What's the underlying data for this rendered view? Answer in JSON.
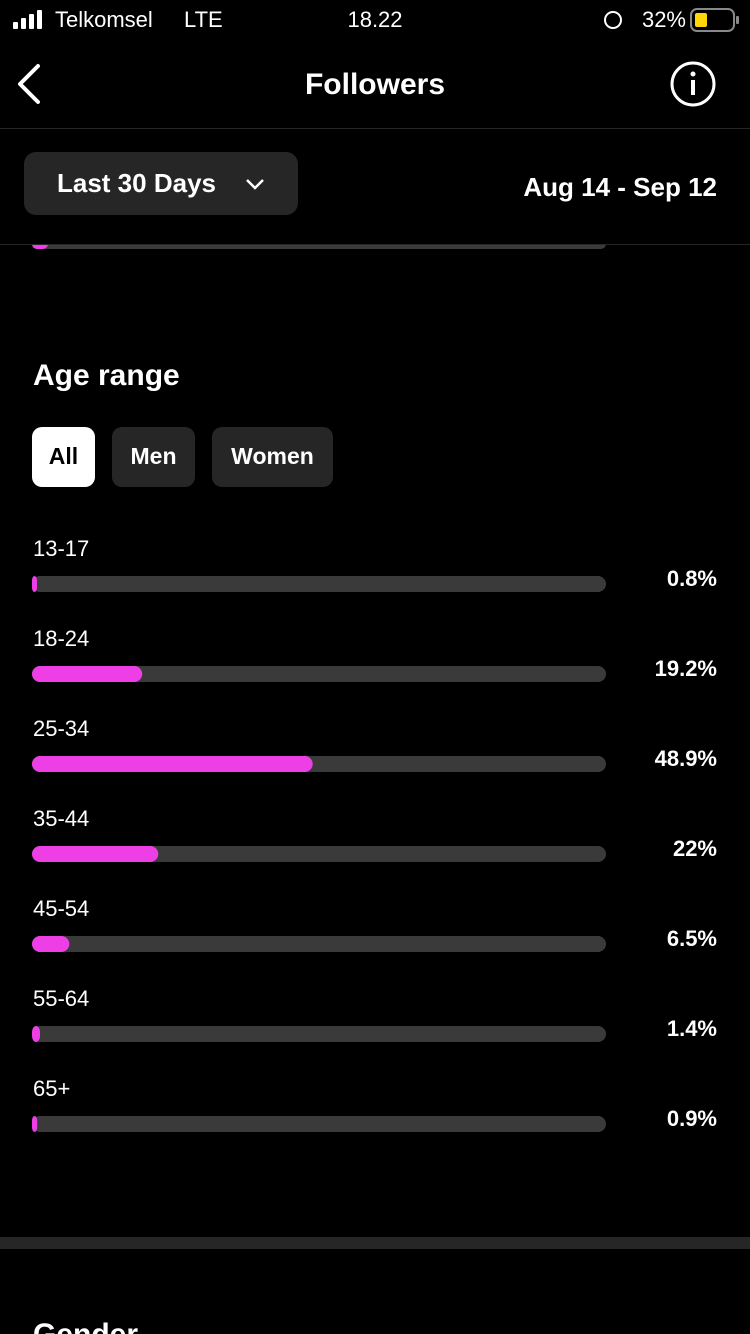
{
  "status_bar": {
    "carrier": "Telkomsel",
    "network": "LTE",
    "time": "18.22",
    "battery": "32%"
  },
  "header": {
    "title": "Followers"
  },
  "filter": {
    "period": "Last 30 Days",
    "date_range": "Aug 14 - Sep 12"
  },
  "age_range": {
    "title": "Age range",
    "tabs": [
      "All",
      "Men",
      "Women"
    ],
    "categories": [
      "13-17",
      "18-24",
      "25-34",
      "35-44",
      "45-54",
      "55-64",
      "65+"
    ],
    "values": [
      0.8,
      19.2,
      48.9,
      22,
      6.5,
      1.4,
      0.9
    ],
    "value_labels": [
      "0.8%",
      "19.2%",
      "48.9%",
      "22%",
      "6.5%",
      "1.4%",
      "0.9%"
    ],
    "xlim": [
      0,
      100
    ],
    "color": "#ee3fe6"
  },
  "gender": {
    "title": "Gender"
  }
}
